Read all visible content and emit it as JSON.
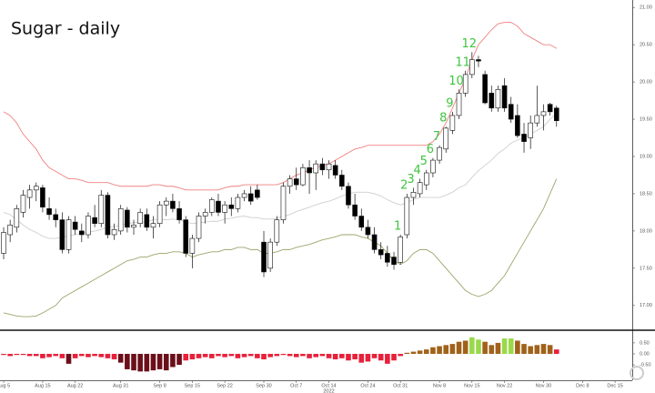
{
  "chart_data": [
    {
      "type": "candlestick",
      "title": "Sugar - daily",
      "x": [
        0,
        1,
        2,
        3,
        4,
        5,
        6,
        7,
        8,
        9,
        10,
        11,
        12,
        13,
        14,
        15,
        16,
        17,
        18,
        19,
        20,
        21,
        22,
        23,
        24,
        25,
        26,
        27,
        28,
        29,
        30,
        31,
        32,
        33,
        34,
        35,
        36,
        37,
        38,
        39,
        40,
        41,
        42,
        43,
        44,
        45,
        46,
        47,
        48,
        49,
        50,
        51,
        52,
        53,
        54,
        55,
        56,
        57,
        58,
        59,
        60,
        61,
        62,
        63,
        64,
        65,
        66,
        67,
        68,
        69,
        70,
        71,
        72,
        73,
        74,
        75,
        76,
        77,
        78,
        79,
        80,
        81,
        82,
        83,
        84,
        85
      ],
      "open": [
        17.7,
        17.95,
        18.05,
        18.25,
        18.45,
        18.55,
        18.58,
        18.3,
        18.22,
        18.15,
        17.75,
        18.12,
        18.0,
        17.95,
        18.18,
        18.1,
        18.48,
        17.95,
        18.0,
        18.28,
        18.05,
        18.1,
        18.22,
        18.05,
        18.1,
        18.35,
        18.4,
        18.3,
        18.15,
        17.7,
        17.9,
        18.2,
        18.25,
        18.4,
        18.25,
        18.35,
        18.3,
        18.45,
        18.5,
        18.55,
        17.85,
        17.5,
        17.85,
        18.15,
        18.6,
        18.7,
        18.62,
        18.85,
        18.78,
        18.9,
        18.82,
        18.88,
        18.75,
        18.6,
        18.35,
        18.2,
        18.05,
        17.95,
        17.75,
        17.7,
        17.65,
        17.58,
        17.95,
        18.45,
        18.5,
        18.62,
        18.78,
        18.95,
        19.1,
        19.35,
        19.55,
        19.85,
        20.1,
        20.3,
        20.1,
        19.85,
        19.65,
        19.95,
        19.7,
        19.55,
        19.3,
        19.25,
        19.45,
        19.55,
        19.7,
        19.65
      ],
      "high": [
        18.05,
        18.15,
        18.35,
        18.55,
        18.62,
        18.65,
        18.62,
        18.45,
        18.3,
        18.25,
        18.2,
        18.2,
        18.1,
        18.25,
        18.35,
        18.55,
        18.52,
        18.1,
        18.35,
        18.32,
        18.15,
        18.3,
        18.3,
        18.2,
        18.4,
        18.45,
        18.5,
        18.4,
        18.2,
        17.95,
        18.25,
        18.3,
        18.45,
        18.5,
        18.4,
        18.45,
        18.5,
        18.55,
        18.6,
        18.62,
        18.0,
        17.9,
        18.2,
        18.65,
        18.75,
        18.85,
        18.9,
        18.95,
        18.95,
        18.98,
        18.95,
        18.95,
        18.82,
        18.65,
        18.5,
        18.3,
        18.15,
        18.05,
        17.85,
        17.8,
        17.72,
        17.95,
        18.5,
        18.58,
        18.7,
        18.82,
        18.98,
        19.15,
        19.4,
        19.6,
        19.9,
        20.15,
        20.4,
        20.35,
        20.15,
        19.95,
        19.95,
        20.05,
        19.8,
        19.7,
        19.45,
        19.55,
        19.95,
        19.7,
        19.72,
        19.68
      ],
      "low": [
        17.62,
        17.85,
        17.98,
        18.18,
        18.3,
        18.4,
        18.25,
        18.15,
        18.05,
        17.7,
        17.7,
        17.95,
        17.85,
        17.9,
        18.05,
        18.05,
        17.9,
        17.88,
        17.95,
        17.98,
        17.95,
        18.05,
        18.0,
        17.9,
        18.05,
        18.2,
        18.25,
        18.1,
        17.65,
        17.5,
        17.85,
        18.1,
        18.2,
        18.2,
        18.1,
        18.2,
        18.25,
        18.4,
        18.35,
        18.42,
        17.38,
        17.45,
        17.8,
        18.1,
        18.5,
        18.55,
        18.6,
        18.5,
        18.55,
        18.75,
        18.7,
        18.7,
        18.55,
        18.3,
        18.15,
        18.0,
        17.9,
        17.7,
        17.62,
        17.52,
        17.48,
        17.55,
        17.9,
        18.35,
        18.45,
        18.55,
        18.72,
        18.9,
        19.05,
        19.3,
        19.5,
        19.8,
        20.05,
        20.2,
        19.7,
        19.6,
        19.6,
        19.6,
        19.45,
        19.25,
        19.05,
        19.1,
        19.4,
        19.35,
        19.55,
        19.4
      ],
      "close": [
        17.98,
        18.08,
        18.3,
        18.48,
        18.55,
        18.6,
        18.32,
        18.22,
        18.15,
        17.75,
        18.15,
        18.02,
        17.95,
        18.2,
        18.1,
        18.48,
        17.95,
        18.02,
        18.3,
        18.05,
        18.08,
        18.25,
        18.05,
        18.1,
        18.35,
        18.4,
        18.3,
        18.15,
        17.7,
        17.9,
        18.2,
        18.25,
        18.42,
        18.25,
        18.35,
        18.3,
        18.45,
        18.5,
        18.4,
        18.45,
        17.45,
        17.85,
        18.15,
        18.6,
        18.7,
        18.62,
        18.85,
        18.78,
        18.9,
        18.82,
        18.9,
        18.75,
        18.6,
        18.35,
        18.2,
        18.05,
        17.95,
        17.75,
        17.68,
        17.58,
        17.55,
        17.92,
        18.45,
        18.52,
        18.65,
        18.78,
        18.95,
        19.12,
        19.38,
        19.55,
        19.85,
        20.1,
        20.3,
        20.28,
        19.72,
        19.65,
        19.9,
        19.65,
        19.5,
        19.28,
        19.2,
        19.45,
        19.55,
        19.6,
        19.6,
        19.48
      ],
      "up_color": "#ffffff",
      "down_color": "#000000",
      "lines": [
        {
          "color": "#f08080",
          "values": [
            19.6,
            19.55,
            19.45,
            19.3,
            19.2,
            19.1,
            18.95,
            18.85,
            18.8,
            18.75,
            18.7,
            18.7,
            18.68,
            18.65,
            18.65,
            18.65,
            18.65,
            18.62,
            18.6,
            18.6,
            18.6,
            18.6,
            18.6,
            18.62,
            18.62,
            18.6,
            18.6,
            18.58,
            18.55,
            18.55,
            18.55,
            18.55,
            18.55,
            18.55,
            18.58,
            18.6,
            18.6,
            18.62,
            18.62,
            18.62,
            18.62,
            18.62,
            18.62,
            18.65,
            18.7,
            18.75,
            18.78,
            18.82,
            18.85,
            18.88,
            18.9,
            18.95,
            19.0,
            19.05,
            19.1,
            19.12,
            19.15,
            19.15,
            19.15,
            19.15,
            19.15,
            19.15,
            19.15,
            19.15,
            19.15,
            19.15,
            19.2,
            19.3,
            19.45,
            19.65,
            19.85,
            20.05,
            20.3,
            20.5,
            20.6,
            20.7,
            20.78,
            20.8,
            20.8,
            20.75,
            20.65,
            20.6,
            20.55,
            20.5,
            20.5,
            20.45
          ]
        },
        {
          "color": "#cfcfcf",
          "values": [
            18.25,
            18.22,
            18.15,
            18.08,
            18.02,
            17.98,
            17.93,
            17.9,
            17.9,
            17.92,
            17.93,
            17.95,
            17.97,
            17.98,
            18.0,
            18.02,
            18.05,
            18.06,
            18.08,
            18.1,
            18.11,
            18.12,
            18.12,
            18.15,
            18.16,
            18.15,
            18.16,
            18.15,
            18.12,
            18.1,
            18.11,
            18.12,
            18.13,
            18.13,
            18.16,
            18.17,
            18.19,
            18.2,
            18.18,
            18.18,
            18.16,
            18.16,
            18.17,
            18.2,
            18.22,
            18.26,
            18.29,
            18.32,
            18.35,
            18.38,
            18.4,
            18.43,
            18.47,
            18.5,
            18.52,
            18.52,
            18.52,
            18.5,
            18.47,
            18.42,
            18.38,
            18.35,
            18.38,
            18.42,
            18.45,
            18.45,
            18.45,
            18.45,
            18.48,
            18.52,
            18.58,
            18.62,
            18.72,
            18.81,
            18.88,
            18.95,
            19.04,
            19.1,
            19.18,
            19.22,
            19.25,
            19.3,
            19.35,
            19.4,
            19.5,
            19.58
          ]
        },
        {
          "color": "#9aa66a",
          "values": [
            16.9,
            16.88,
            16.86,
            16.85,
            16.85,
            16.86,
            16.9,
            16.95,
            17.0,
            17.1,
            17.15,
            17.2,
            17.25,
            17.3,
            17.35,
            17.4,
            17.45,
            17.5,
            17.55,
            17.6,
            17.62,
            17.65,
            17.65,
            17.68,
            17.7,
            17.7,
            17.72,
            17.72,
            17.7,
            17.65,
            17.68,
            17.7,
            17.72,
            17.72,
            17.75,
            17.75,
            17.78,
            17.78,
            17.75,
            17.75,
            17.7,
            17.7,
            17.72,
            17.75,
            17.75,
            17.78,
            17.8,
            17.82,
            17.85,
            17.88,
            17.9,
            17.92,
            17.95,
            17.95,
            17.95,
            17.92,
            17.9,
            17.85,
            17.8,
            17.7,
            17.6,
            17.55,
            17.6,
            17.7,
            17.75,
            17.75,
            17.7,
            17.6,
            17.5,
            17.4,
            17.3,
            17.2,
            17.15,
            17.12,
            17.15,
            17.2,
            17.3,
            17.4,
            17.55,
            17.7,
            17.85,
            18.0,
            18.15,
            18.3,
            18.5,
            18.7
          ]
        }
      ],
      "annotations": [
        {
          "text": "1",
          "x": 61
        },
        {
          "text": "2",
          "x": 62
        },
        {
          "text": "3",
          "x": 63
        },
        {
          "text": "4",
          "x": 64
        },
        {
          "text": "5",
          "x": 65
        },
        {
          "text": "6",
          "x": 66
        },
        {
          "text": "7",
          "x": 67
        },
        {
          "text": "8",
          "x": 68
        },
        {
          "text": "9",
          "x": 69
        },
        {
          "text": "10",
          "x": 70
        },
        {
          "text": "11",
          "x": 71
        },
        {
          "text": "12",
          "x": 72
        }
      ],
      "xlim": [
        -0.56,
        96.64
      ],
      "xticks": [
        {
          "value": 0,
          "label": "Aug 5"
        },
        {
          "value": 6,
          "label": "Aug 15"
        },
        {
          "value": 11,
          "label": "Aug 22"
        },
        {
          "value": 18,
          "label": "Aug 31"
        },
        {
          "value": 24,
          "label": "Sep 8"
        },
        {
          "value": 29,
          "label": "Sep 15"
        },
        {
          "value": 34,
          "label": "Sep 22"
        },
        {
          "value": 40,
          "label": "Sep 30"
        },
        {
          "value": 45,
          "label": "Oct 7"
        },
        {
          "value": 50,
          "label": "Oct 14"
        },
        {
          "value": 56,
          "label": "Oct 24"
        },
        {
          "value": 61,
          "label": "Oct 31"
        },
        {
          "value": 67,
          "label": "Nov 8"
        },
        {
          "value": 72,
          "label": "Nov 15"
        },
        {
          "value": 77,
          "label": "Nov 22"
        },
        {
          "value": 83,
          "label": "Nov 30"
        },
        {
          "value": 89,
          "label": "Dec 8"
        },
        {
          "value": 94,
          "label": "Dec 15"
        }
      ],
      "year_label": {
        "value": 50,
        "label": "2022"
      },
      "ylim": [
        16.68,
        21.1
      ],
      "yticks": [
        {
          "value": 17,
          "label": "17.00"
        },
        {
          "value": 17.5,
          "label": "17.50"
        },
        {
          "value": 18,
          "label": "18.00"
        },
        {
          "value": 18.5,
          "label": "18.50"
        },
        {
          "value": 19,
          "label": "19.00"
        },
        {
          "value": 19.5,
          "label": "19.50"
        },
        {
          "value": 20,
          "label": "20.00"
        },
        {
          "value": 20.5,
          "label": "20.50"
        },
        {
          "value": 21,
          "label": "21.00"
        }
      ]
    },
    {
      "type": "bar",
      "values": [
        -0.05,
        -0.1,
        -0.05,
        -0.05,
        -0.1,
        -0.1,
        -0.2,
        -0.15,
        -0.1,
        -0.2,
        -0.45,
        -0.2,
        -0.1,
        -0.15,
        -0.1,
        -0.15,
        -0.2,
        -0.25,
        -0.4,
        -0.7,
        -0.75,
        -0.8,
        -0.8,
        -0.75,
        -0.7,
        -0.75,
        -0.6,
        -0.5,
        -0.3,
        -0.25,
        -0.2,
        -0.15,
        -0.2,
        -0.1,
        -0.15,
        -0.1,
        -0.2,
        -0.15,
        -0.1,
        -0.2,
        -0.25,
        -0.15,
        -0.1,
        -0.05,
        -0.1,
        -0.15,
        -0.1,
        -0.2,
        -0.15,
        -0.1,
        -0.2,
        -0.25,
        -0.2,
        -0.3,
        -0.25,
        -0.4,
        -0.35,
        -0.2,
        -0.3,
        -0.45,
        -0.3,
        -0.1,
        0.05,
        0.1,
        0.15,
        0.2,
        0.3,
        0.35,
        0.4,
        0.45,
        0.55,
        0.6,
        0.75,
        0.65,
        0.55,
        0.4,
        0.5,
        0.7,
        0.7,
        0.6,
        0.45,
        0.35,
        0.4,
        0.45,
        0.4,
        0.2
      ],
      "colors": [
        "#e8203a",
        "#e8203a",
        "#e8203a",
        "#e8203a",
        "#e8203a",
        "#e8203a",
        "#e8203a",
        "#e8203a",
        "#e8203a",
        "#e8203a",
        "#6b0f1a",
        "#e8203a",
        "#e8203a",
        "#e8203a",
        "#e8203a",
        "#e8203a",
        "#e8203a",
        "#e8203a",
        "#6b0f1a",
        "#6b0f1a",
        "#6b0f1a",
        "#6b0f1a",
        "#6b0f1a",
        "#6b0f1a",
        "#6b0f1a",
        "#6b0f1a",
        "#6b0f1a",
        "#6b0f1a",
        "#e8203a",
        "#e8203a",
        "#e8203a",
        "#e8203a",
        "#e8203a",
        "#e8203a",
        "#e8203a",
        "#e8203a",
        "#e8203a",
        "#e8203a",
        "#e8203a",
        "#e8203a",
        "#e8203a",
        "#e8203a",
        "#e8203a",
        "#e8203a",
        "#e8203a",
        "#e8203a",
        "#e8203a",
        "#e8203a",
        "#e8203a",
        "#e8203a",
        "#e8203a",
        "#e8203a",
        "#e8203a",
        "#e8203a",
        "#e8203a",
        "#e8203a",
        "#e8203a",
        "#e8203a",
        "#e8203a",
        "#e8203a",
        "#e8203a",
        "#e8203a",
        "#a0621a",
        "#a0621a",
        "#a0621a",
        "#a0621a",
        "#a0621a",
        "#a0621a",
        "#a0621a",
        "#a0621a",
        "#a0621a",
        "#a0621a",
        "#9ad94a",
        "#9ad94a",
        "#a0621a",
        "#a0621a",
        "#a0621a",
        "#9ad94a",
        "#9ad94a",
        "#a0621a",
        "#a0621a",
        "#a0621a",
        "#a0621a",
        "#a0621a",
        "#a0621a",
        "#e8203a"
      ],
      "ylim": [
        -1.2,
        0.95
      ],
      "yticks": [
        {
          "value": -0.5,
          "label": "-0.50"
        },
        {
          "value": 0,
          "label": "0.00"
        },
        {
          "value": 0.5,
          "label": "0.50"
        }
      ]
    }
  ]
}
